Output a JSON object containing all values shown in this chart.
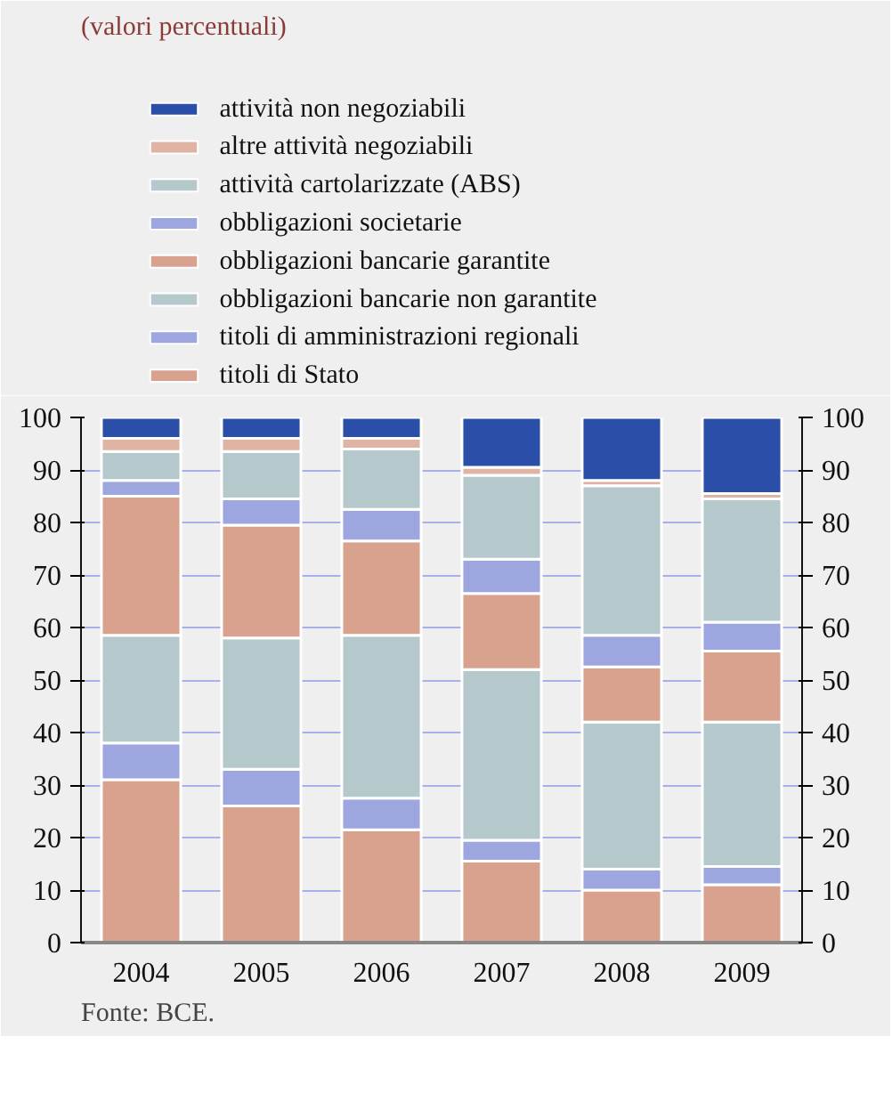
{
  "chart_data": {
    "type": "bar",
    "stacked": true,
    "title": "(valori percentuali)",
    "categories": [
      "2004",
      "2005",
      "2006",
      "2007",
      "2008",
      "2009"
    ],
    "series": [
      {
        "name": "titoli di Stato",
        "color": "#d9a28e",
        "values": [
          31,
          26,
          21.5,
          15.5,
          10,
          11
        ]
      },
      {
        "name": "titoli di amministrazioni regionali",
        "color": "#9ea6e0",
        "values": [
          7,
          7,
          6,
          4,
          4,
          3.5
        ]
      },
      {
        "name": "obbligazioni bancarie non garantite",
        "color": "#b5c8cc",
        "values": [
          20.5,
          25,
          31,
          32.5,
          28,
          27.5
        ]
      },
      {
        "name": "obbligazioni bancarie garantite",
        "color": "#d9a28e",
        "values": [
          26.5,
          21.5,
          18,
          14.5,
          10.5,
          13.5
        ]
      },
      {
        "name": "obbligazioni societarie",
        "color": "#9ea6e0",
        "values": [
          3,
          5,
          6,
          6.5,
          6,
          5.5
        ]
      },
      {
        "name": "attività cartolarizzate (ABS)",
        "color": "#b5c8cc",
        "values": [
          5.5,
          9,
          11.5,
          16,
          28.5,
          23.5
        ]
      },
      {
        "name": "altre attività negoziabili",
        "color": "#e0b4a4",
        "values": [
          2.5,
          2.5,
          2,
          1.5,
          1,
          1
        ]
      },
      {
        "name": "attività non negoziabili",
        "color": "#2b4fa8",
        "values": [
          4,
          4,
          4,
          9.5,
          12,
          14.5
        ]
      }
    ],
    "ylim": [
      0,
      100
    ],
    "yticks": [
      0,
      10,
      20,
      30,
      40,
      50,
      60,
      70,
      80,
      90,
      100
    ],
    "y2lim": [
      0,
      100
    ],
    "y2ticks": [
      0,
      10,
      20,
      30,
      40,
      50,
      60,
      70,
      80,
      90,
      100
    ],
    "grid": "y",
    "legend": "top",
    "annotations": [
      "Fonte: BCE."
    ]
  }
}
